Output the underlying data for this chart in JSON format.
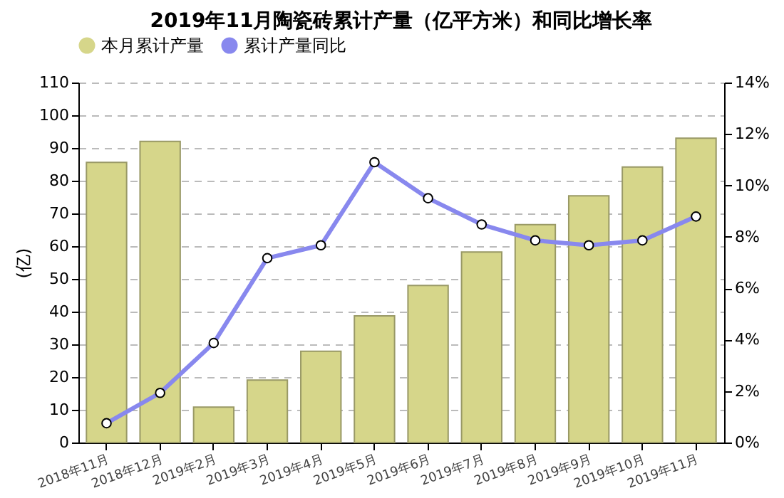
{
  "chart_data": {
    "type": "bar",
    "title": "2019年11月陶瓷砖累计产量（亿平方米）和同比增长率",
    "ylabel": "(亿)",
    "categories": [
      "2018年11月",
      "2018年12月",
      "2019年2月",
      "2019年3月",
      "2019年4月",
      "2019年5月",
      "2019年6月",
      "2019年7月",
      "2019年8月",
      "2019年9月",
      "2019年10月",
      "2019年11月"
    ],
    "series": [
      {
        "name": "本月累计产量",
        "color": "#d6d68a",
        "values": [
          85.6,
          92,
          10.8,
          19.1,
          27.9,
          38.7,
          48,
          58.2,
          66.6,
          75.4,
          84.2,
          93
        ]
      },
      {
        "name": "累计产量同比",
        "type": "line",
        "axis": "y2",
        "color": "#8888ee",
        "marker": "circle",
        "values": [
          0.75,
          1.93,
          3.87,
          7.17,
          7.67,
          10.9,
          9.5,
          8.48,
          7.86,
          7.67,
          7.86,
          8.79
        ]
      }
    ],
    "ylim": [
      0,
      110
    ],
    "yticks": [
      0,
      10,
      20,
      30,
      40,
      50,
      60,
      70,
      80,
      90,
      100,
      110
    ],
    "y2lim": [
      0,
      14
    ],
    "y2ticks": [
      {
        "value": 0,
        "label": "0%"
      },
      {
        "value": 2,
        "label": "2%"
      },
      {
        "value": 4,
        "label": "4%"
      },
      {
        "value": 6,
        "label": "6%"
      },
      {
        "value": 8,
        "label": "8%"
      },
      {
        "value": 10,
        "label": "10%"
      },
      {
        "value": 12,
        "label": "12%"
      },
      {
        "value": 14,
        "label": "14%"
      }
    ],
    "grid": "y",
    "legend": "top"
  }
}
